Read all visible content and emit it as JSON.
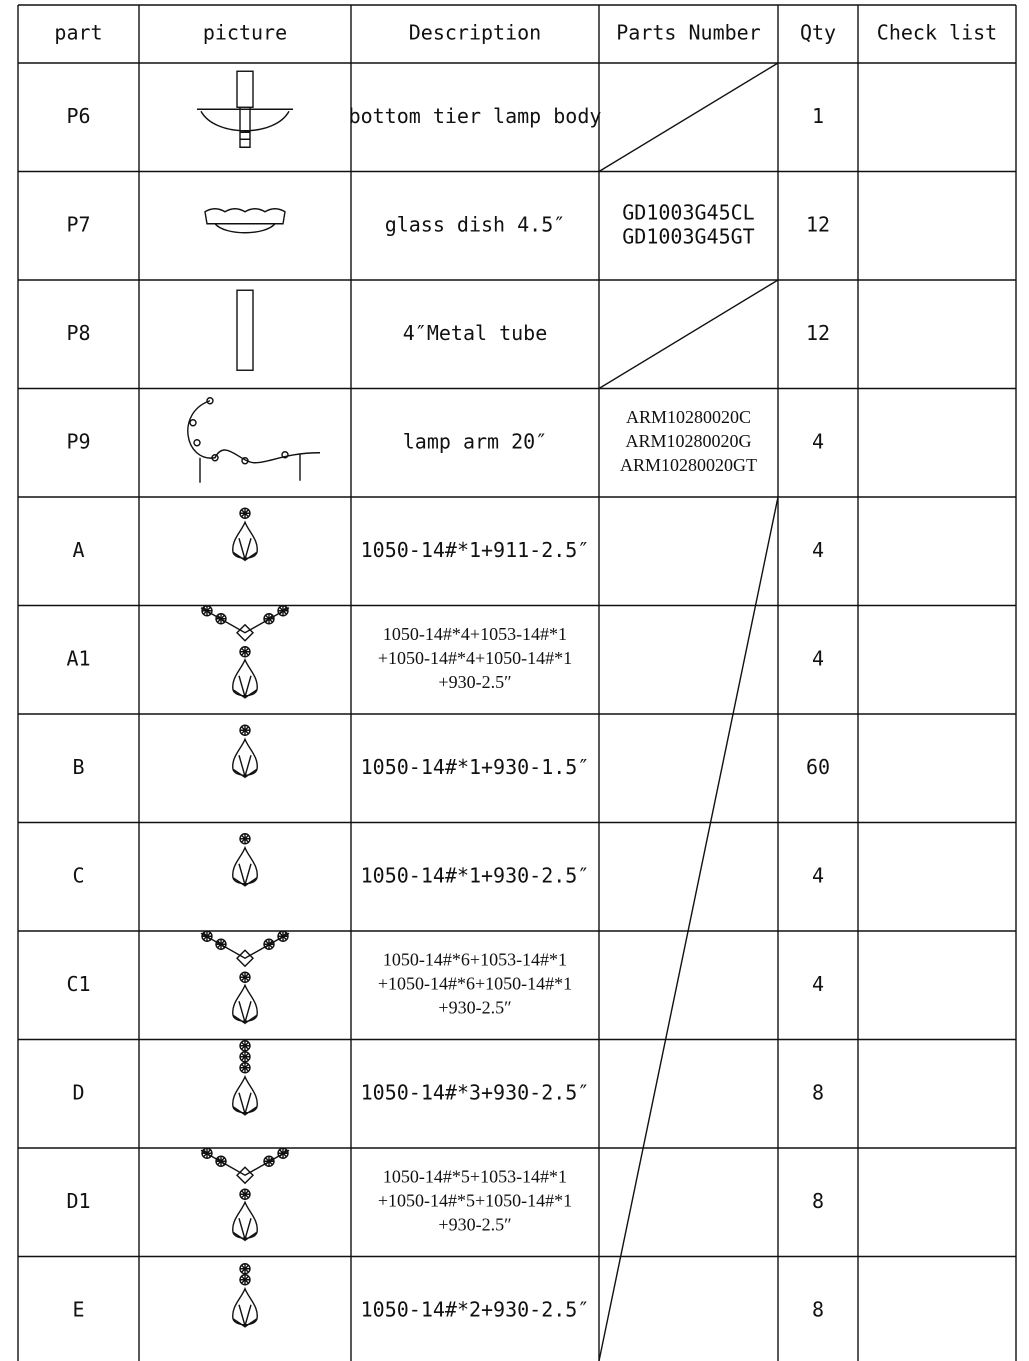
{
  "table": {
    "header": [
      "part",
      "picture",
      "Description",
      "Parts Number",
      "Qty",
      "Check list"
    ],
    "rows": [
      {
        "part": "P6",
        "description": [
          "bottom tier lamp body"
        ],
        "qty": 1
      },
      {
        "part": "P7",
        "description": [
          "glass dish 4.5″"
        ],
        "parts_number": [
          "GD1003G45CL",
          "GD1003G45GT"
        ],
        "qty": 12
      },
      {
        "part": "P8",
        "description": [
          "4″Metal tube"
        ],
        "qty": 12
      },
      {
        "part": "P9",
        "description": [
          "lamp arm 20″"
        ],
        "parts_number": [
          "ARM10280020C",
          "ARM10280020G",
          "ARM10280020GT"
        ],
        "qty": 4
      },
      {
        "part": "A",
        "description": [
          "1050-14#*1+911-2.5″"
        ],
        "qty": 4
      },
      {
        "part": "A1",
        "description": [
          "1050-14#*4+1053-14#*1",
          "+1050-14#*4+1050-14#*1",
          "+930-2.5″"
        ],
        "qty": 4
      },
      {
        "part": "B",
        "description": [
          "1050-14#*1+930-1.5″"
        ],
        "qty": 60
      },
      {
        "part": "C",
        "description": [
          "1050-14#*1+930-2.5″"
        ],
        "qty": 4
      },
      {
        "part": "C1",
        "description": [
          "1050-14#*6+1053-14#*1",
          "+1050-14#*6+1050-14#*1",
          "+930-2.5″"
        ],
        "qty": 4
      },
      {
        "part": "D",
        "description": [
          "1050-14#*3+930-2.5″"
        ],
        "qty": 8
      },
      {
        "part": "D1",
        "description": [
          "1050-14#*5+1053-14#*1",
          "+1050-14#*5+1050-14#*1",
          "+930-2.5″"
        ],
        "qty": 8
      },
      {
        "part": "E",
        "description": [
          "1050-14#*2+930-2.5″"
        ],
        "qty": 8
      }
    ]
  }
}
